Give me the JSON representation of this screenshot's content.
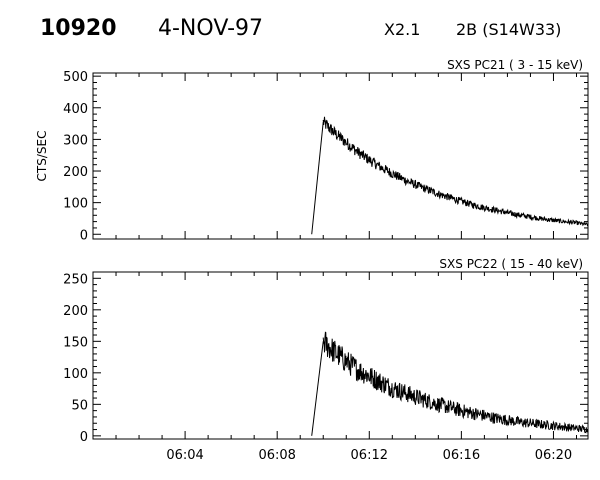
{
  "header": {
    "flare_number": "10920",
    "date": "4-NOV-97",
    "xray_class": "X2.1",
    "optical": "2B (S14W33)"
  },
  "chart_data": [
    {
      "type": "line",
      "title": "SXS PC21  (  3 - 15 keV)",
      "ylabel": "CTS/SEC",
      "xlabel": "",
      "xlim": [
        0,
        21.5
      ],
      "ylim": [
        -15,
        510
      ],
      "yticks": [
        0,
        100,
        200,
        300,
        400,
        500
      ],
      "xticks": [
        "06:04",
        "06:08",
        "06:12",
        "06:16",
        "06:20"
      ],
      "xtick_values": [
        4,
        8,
        12,
        16,
        20
      ],
      "x_tick_labels_shown": false,
      "series": [
        {
          "x": [
            9.5,
            10.0,
            10.5,
            11.0,
            11.5,
            12.0,
            12.5,
            13.0,
            13.5,
            14.0,
            14.5,
            15.0,
            15.5,
            16.0,
            16.5,
            17.0,
            17.5,
            18.0,
            18.5,
            19.0,
            19.5,
            20.0,
            20.5,
            21.0,
            21.5
          ],
          "y": [
            0,
            355,
            320,
            290,
            260,
            235,
            212,
            192,
            173,
            157,
            142,
            128,
            116,
            104,
            93,
            84,
            76,
            68,
            61,
            55,
            49,
            44,
            40,
            36,
            30
          ]
        }
      ]
    },
    {
      "type": "line",
      "title": "SXS PC22  ( 15 - 40 keV)",
      "ylabel": "",
      "xlabel": "",
      "xlim": [
        0,
        21.5
      ],
      "ylim": [
        -5,
        260
      ],
      "yticks": [
        0,
        50,
        100,
        150,
        200,
        250
      ],
      "xticks": [
        "06:04",
        "06:08",
        "06:12",
        "06:16",
        "06:20"
      ],
      "xtick_values": [
        4,
        8,
        12,
        16,
        20
      ],
      "x_tick_labels_shown": true,
      "series": [
        {
          "x": [
            9.5,
            10.0,
            10.5,
            11.0,
            11.5,
            12.0,
            12.5,
            13.0,
            13.5,
            14.0,
            14.5,
            15.0,
            15.5,
            16.0,
            16.5,
            17.0,
            17.5,
            18.0,
            18.5,
            19.0,
            19.5,
            20.0,
            20.5,
            21.0,
            21.5
          ],
          "y": [
            0,
            150,
            133,
            118,
            105,
            95,
            85,
            76,
            69,
            62,
            56,
            50,
            45,
            40,
            36,
            32,
            28,
            25,
            22,
            20,
            18,
            16,
            14,
            12,
            10
          ]
        }
      ]
    }
  ]
}
